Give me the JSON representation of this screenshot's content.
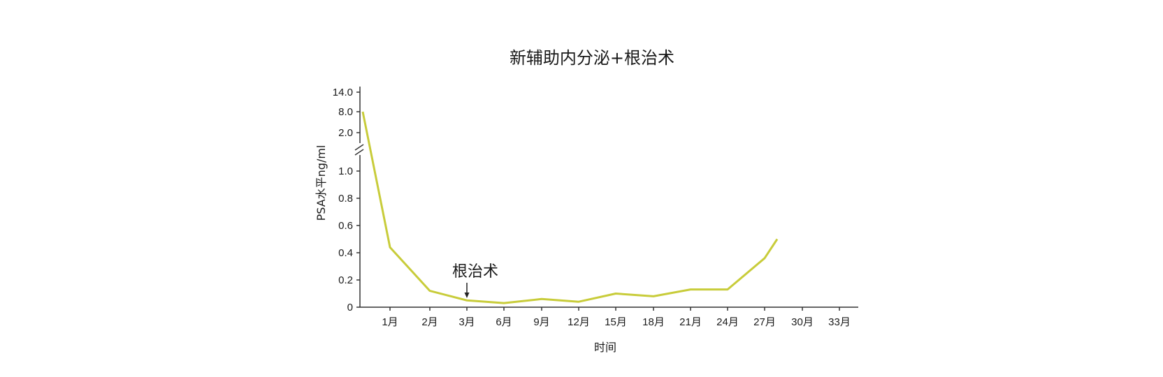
{
  "chart_data": {
    "type": "line",
    "title": "新辅助内分泌+根治术",
    "xlabel": "时间",
    "ylabel": "PSA水平ng/ml",
    "x_tick_labels": [
      "1月",
      "2月",
      "3月",
      "6月",
      "9月",
      "12月",
      "15月",
      "18月",
      "21月",
      "24月",
      "27月",
      "30月",
      "33月"
    ],
    "y_tick_labels": [
      "0",
      "0.2",
      "0.4",
      "0.6",
      "0.8",
      "1.0",
      "2.0",
      "8.0",
      "14.0"
    ],
    "y_axis_break": true,
    "series_color": "#c8cc3a",
    "series": [
      {
        "x": [
          "0月",
          "1月",
          "2月",
          "3月",
          "6月",
          "9月",
          "12月",
          "15月",
          "18月",
          "21月",
          "24月",
          "27月",
          "28月"
        ],
        "values": [
          8.0,
          0.44,
          0.12,
          0.05,
          0.03,
          0.06,
          0.04,
          0.1,
          0.08,
          0.13,
          0.13,
          0.36,
          0.5
        ]
      }
    ],
    "annotation": {
      "text": "根治术",
      "x": "3月"
    }
  }
}
